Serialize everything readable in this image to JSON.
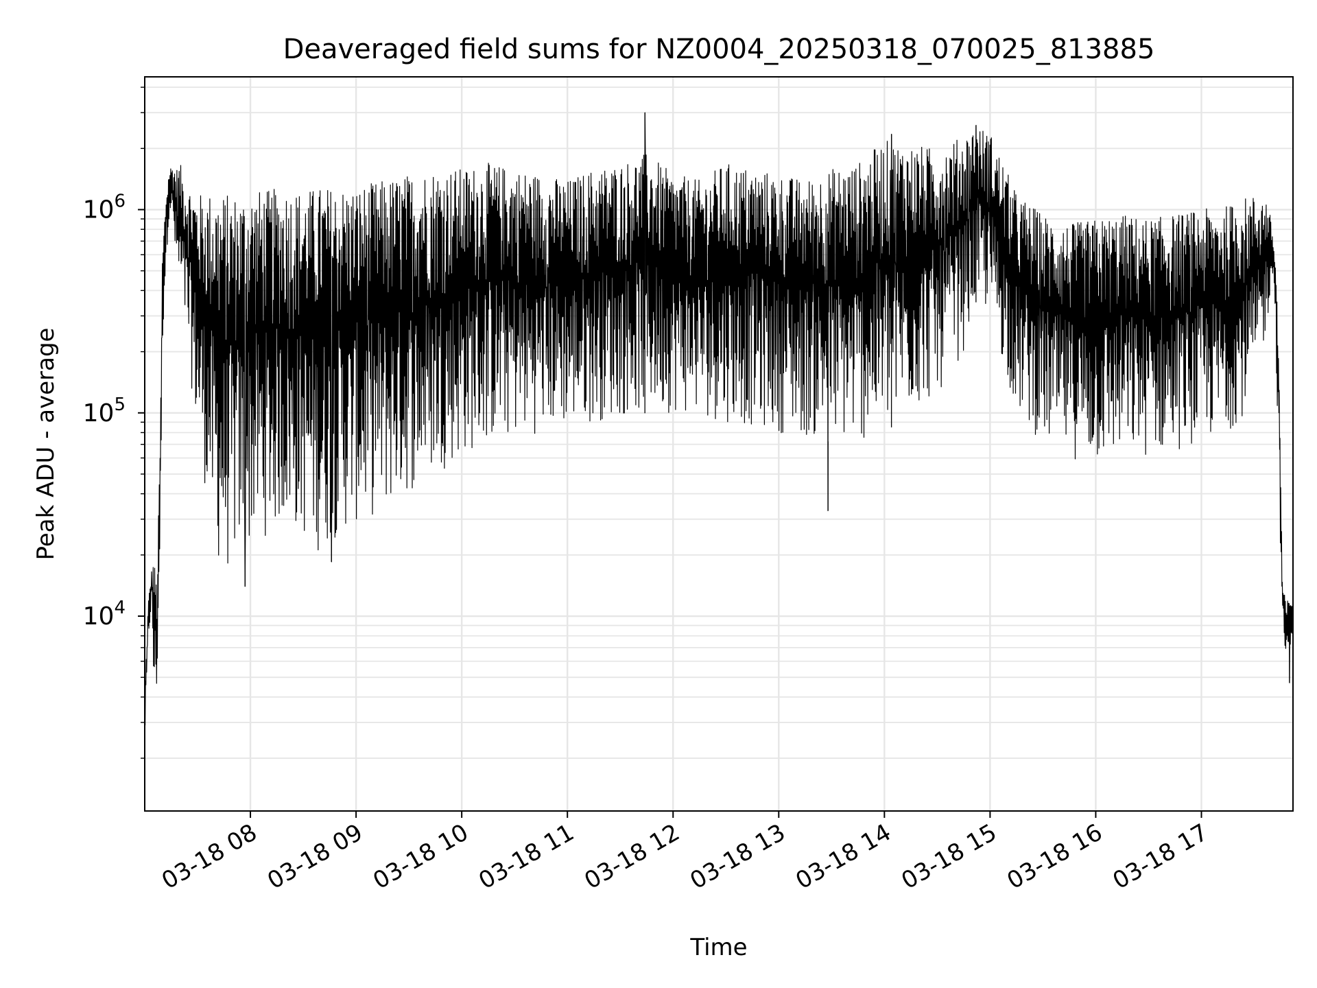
{
  "chart_data": {
    "type": "line",
    "title": "Deaveraged field sums for NZ0004_20250318_070025_813885",
    "xlabel": "Time",
    "ylabel": "Peak ADU - average",
    "x_ticks": [
      "03-18 08",
      "03-18 09",
      "03-18 10",
      "03-18 11",
      "03-18 12",
      "03-18 13",
      "03-18 14",
      "03-18 15",
      "03-18 16",
      "03-18 17"
    ],
    "x_tick_times": [
      "2025-03-18T08:00",
      "2025-03-18T09:00",
      "2025-03-18T10:00",
      "2025-03-18T11:00",
      "2025-03-18T12:00",
      "2025-03-18T13:00",
      "2025-03-18T14:00",
      "2025-03-18T15:00",
      "2025-03-18T16:00",
      "2025-03-18T17:00"
    ],
    "xlim": [
      "2025-03-18T07:00",
      "2025-03-18T17:52"
    ],
    "y_scale": "log",
    "ylim": [
      1100,
      4500000
    ],
    "y_ticks": [
      10000,
      100000,
      1000000
    ],
    "y_tick_labels": [
      {
        "base": "10",
        "exp": "4"
      },
      {
        "base": "10",
        "exp": "5"
      },
      {
        "base": "10",
        "exp": "6"
      }
    ],
    "grid": true,
    "grid_minor": true,
    "line_color": "#000000",
    "grid_color": "#e6e6e6",
    "series": [
      {
        "x": [
          "2025-03-18T07:00",
          "2025-03-18T07:02",
          "2025-03-18T07:04",
          "2025-03-18T07:05",
          "2025-03-18T07:07",
          "2025-03-18T07:09",
          "2025-03-18T07:10",
          "2025-03-18T07:12",
          "2025-03-18T07:14",
          "2025-03-18T07:16",
          "2025-03-18T07:18",
          "2025-03-18T07:20",
          "2025-03-18T07:23",
          "2025-03-18T07:26",
          "2025-03-18T07:30",
          "2025-03-18T07:35",
          "2025-03-18T07:40",
          "2025-03-18T07:45",
          "2025-03-18T07:50",
          "2025-03-18T07:55",
          "2025-03-18T08:00",
          "2025-03-18T08:10",
          "2025-03-18T08:20",
          "2025-03-18T08:30",
          "2025-03-18T08:40",
          "2025-03-18T08:50",
          "2025-03-18T09:00",
          "2025-03-18T09:15",
          "2025-03-18T09:30",
          "2025-03-18T09:45",
          "2025-03-18T10:00",
          "2025-03-18T10:15",
          "2025-03-18T10:30",
          "2025-03-18T10:45",
          "2025-03-18T11:00",
          "2025-03-18T11:15",
          "2025-03-18T11:30",
          "2025-03-18T11:45",
          "2025-03-18T12:00",
          "2025-03-18T12:15",
          "2025-03-18T12:30",
          "2025-03-18T12:45",
          "2025-03-18T13:00",
          "2025-03-18T13:15",
          "2025-03-18T13:30",
          "2025-03-18T13:45",
          "2025-03-18T14:00",
          "2025-03-18T14:15",
          "2025-03-18T14:30",
          "2025-03-18T14:45",
          "2025-03-18T14:52",
          "2025-03-18T15:00",
          "2025-03-18T15:15",
          "2025-03-18T15:30",
          "2025-03-18T15:45",
          "2025-03-18T16:00",
          "2025-03-18T16:15",
          "2025-03-18T16:30",
          "2025-03-18T16:45",
          "2025-03-18T17:00",
          "2025-03-18T17:15",
          "2025-03-18T17:25",
          "2025-03-18T17:33",
          "2025-03-18T17:38",
          "2025-03-18T17:40",
          "2025-03-18T17:42",
          "2025-03-18T17:44",
          "2025-03-18T17:46",
          "2025-03-18T17:48",
          "2025-03-18T17:50",
          "2025-03-18T17:52"
        ],
        "low": [
          2300,
          7000,
          12000,
          3800,
          4000,
          30000,
          200000,
          500000,
          1000000,
          800000,
          450000,
          350000,
          250000,
          150000,
          70000,
          40000,
          20000,
          15000,
          18000,
          20000,
          22000,
          25000,
          28000,
          24000,
          20000,
          25000,
          28000,
          32000,
          40000,
          50000,
          60000,
          70000,
          75000,
          80000,
          85000,
          90000,
          95000,
          100000,
          100000,
          95000,
          90000,
          85000,
          80000,
          75000,
          72000,
          70000,
          80000,
          100000,
          120000,
          200000,
          350000,
          300000,
          100000,
          70000,
          60000,
          55000,
          60000,
          60000,
          65000,
          70000,
          80000,
          100000,
          150000,
          300000,
          500000,
          300000,
          40000,
          10000,
          5000,
          7000,
          8000
        ],
        "high": [
          4000,
          12000,
          17000,
          20000,
          14000,
          100000,
          600000,
          1200000,
          1600000,
          1700000,
          1600000,
          1700000,
          1400000,
          1300000,
          1200000,
          1200000,
          1250000,
          1200000,
          1200000,
          1200000,
          1250000,
          1250000,
          1300000,
          1250000,
          1300000,
          1300000,
          1300000,
          1400000,
          1500000,
          1600000,
          1600000,
          1700000,
          1600000,
          1500000,
          1400000,
          1600000,
          1700000,
          1900000,
          1500000,
          1400000,
          1700000,
          1600000,
          1500000,
          1400000,
          1600000,
          1700000,
          2200000,
          2100000,
          2000000,
          2300000,
          2600000,
          2400000,
          1200000,
          950000,
          850000,
          900000,
          950000,
          900000,
          950000,
          1000000,
          1050000,
          1150000,
          1200000,
          1100000,
          800000,
          600000,
          200000,
          14000,
          12000,
          12000,
          13000
        ],
        "spikes": [
          {
            "x": "2025-03-18T07:57",
            "y": 14000
          },
          {
            "x": "2025-03-18T08:46",
            "y": 18500
          },
          {
            "x": "2025-03-18T11:44",
            "y": 3000000
          },
          {
            "x": "2025-03-18T13:28",
            "y": 33000
          },
          {
            "x": "2025-03-18T14:04",
            "y": 2350000
          },
          {
            "x": "2025-03-18T14:52",
            "y": 2600000
          },
          {
            "x": "2025-03-18T17:50",
            "y": 4700
          }
        ]
      }
    ]
  }
}
